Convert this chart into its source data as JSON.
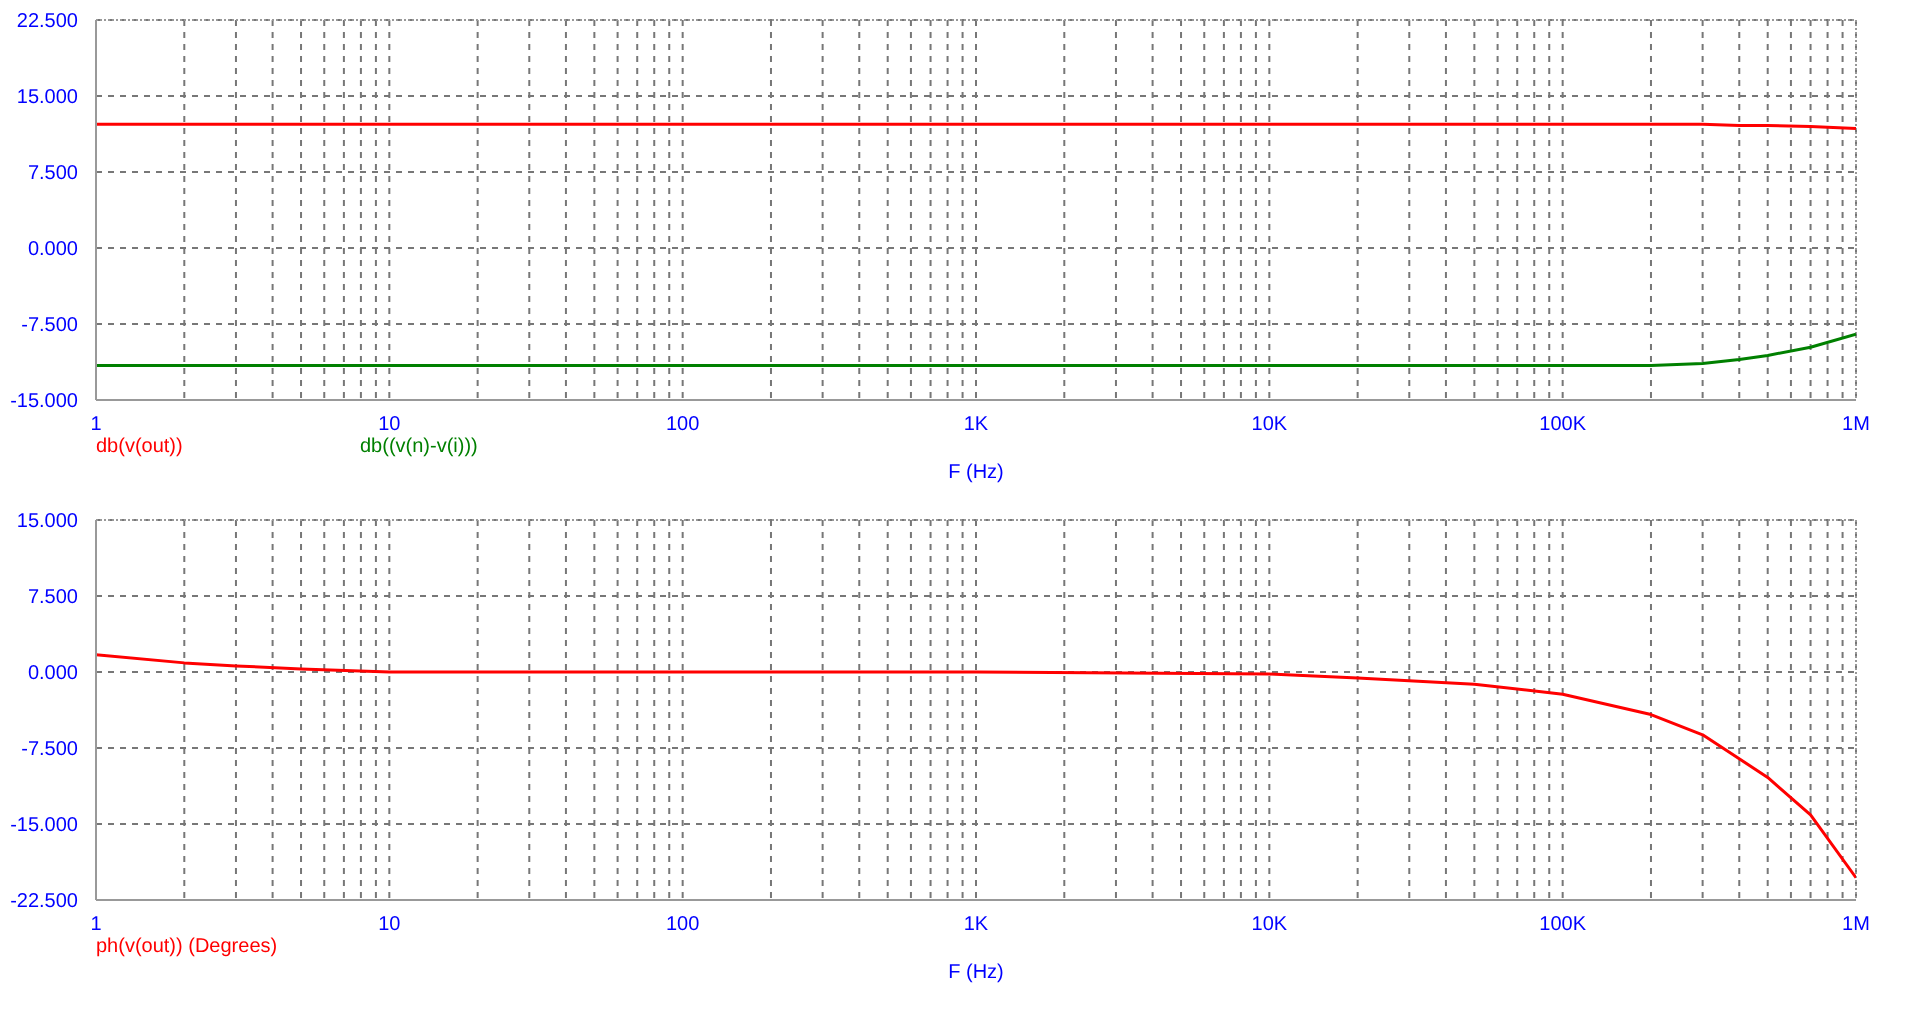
{
  "chart_data": [
    {
      "type": "line",
      "xlabel": "F (Hz)",
      "log": "x",
      "grid": true,
      "legend": "bottom left",
      "marker": "none",
      "line_style": "solid",
      "xlim": [
        1,
        1000000
      ],
      "ylim": [
        -15,
        22.5
      ],
      "xticks": [
        {
          "value": 1,
          "label": "1"
        },
        {
          "value": 2,
          "label": null
        },
        {
          "value": 3,
          "label": null
        },
        {
          "value": 4,
          "label": null
        },
        {
          "value": 5,
          "label": null
        },
        {
          "value": 6,
          "label": null
        },
        {
          "value": 7,
          "label": null
        },
        {
          "value": 8,
          "label": null
        },
        {
          "value": 9,
          "label": null
        },
        {
          "value": 10,
          "label": "10"
        },
        {
          "value": 20,
          "label": null
        },
        {
          "value": 30,
          "label": null
        },
        {
          "value": 40,
          "label": null
        },
        {
          "value": 50,
          "label": null
        },
        {
          "value": 60,
          "label": null
        },
        {
          "value": 70,
          "label": null
        },
        {
          "value": 80,
          "label": null
        },
        {
          "value": 90,
          "label": null
        },
        {
          "value": 100,
          "label": "100"
        },
        {
          "value": 200,
          "label": null
        },
        {
          "value": 300,
          "label": null
        },
        {
          "value": 400,
          "label": null
        },
        {
          "value": 500,
          "label": null
        },
        {
          "value": 600,
          "label": null
        },
        {
          "value": 700,
          "label": null
        },
        {
          "value": 800,
          "label": null
        },
        {
          "value": 900,
          "label": null
        },
        {
          "value": 1000,
          "label": "1K"
        },
        {
          "value": 2000,
          "label": null
        },
        {
          "value": 3000,
          "label": null
        },
        {
          "value": 4000,
          "label": null
        },
        {
          "value": 5000,
          "label": null
        },
        {
          "value": 6000,
          "label": null
        },
        {
          "value": 7000,
          "label": null
        },
        {
          "value": 8000,
          "label": null
        },
        {
          "value": 9000,
          "label": null
        },
        {
          "value": 10000,
          "label": "10K"
        },
        {
          "value": 20000,
          "label": null
        },
        {
          "value": 30000,
          "label": null
        },
        {
          "value": 40000,
          "label": null
        },
        {
          "value": 50000,
          "label": null
        },
        {
          "value": 60000,
          "label": null
        },
        {
          "value": 70000,
          "label": null
        },
        {
          "value": 80000,
          "label": null
        },
        {
          "value": 90000,
          "label": null
        },
        {
          "value": 100000,
          "label": "100K"
        },
        {
          "value": 200000,
          "label": null
        },
        {
          "value": 300000,
          "label": null
        },
        {
          "value": 400000,
          "label": null
        },
        {
          "value": 500000,
          "label": null
        },
        {
          "value": 600000,
          "label": null
        },
        {
          "value": 700000,
          "label": null
        },
        {
          "value": 800000,
          "label": null
        },
        {
          "value": 900000,
          "label": null
        },
        {
          "value": 1000000,
          "label": "1M"
        }
      ],
      "yticks": [
        {
          "value": -15,
          "label": "-15.000"
        },
        {
          "value": -7.5,
          "label": "-7.500"
        },
        {
          "value": 0,
          "label": "0.000"
        },
        {
          "value": 7.5,
          "label": "7.500"
        },
        {
          "value": 15,
          "label": "15.000"
        },
        {
          "value": 22.5,
          "label": "22.500"
        }
      ],
      "series": [
        {
          "name": "db(v(out))",
          "color": "#ff0000",
          "x": [
            1,
            10,
            100,
            1000,
            10000,
            100000,
            200000,
            300000,
            400000,
            500000,
            700000,
            1000000
          ],
          "values": [
            12.2,
            12.2,
            12.2,
            12.2,
            12.2,
            12.2,
            12.2,
            12.2,
            12.1,
            12.1,
            12.0,
            11.8
          ]
        },
        {
          "name": "db((v(n)-v(i)))",
          "color": "#008000",
          "x": [
            1,
            10,
            100,
            1000,
            10000,
            100000,
            200000,
            300000,
            400000,
            500000,
            700000,
            1000000
          ],
          "values": [
            -11.6,
            -11.6,
            -11.6,
            -11.6,
            -11.6,
            -11.6,
            -11.6,
            -11.4,
            -11.0,
            -10.6,
            -9.8,
            -8.5
          ]
        }
      ]
    },
    {
      "type": "line",
      "xlabel": "F (Hz)",
      "log": "x",
      "grid": true,
      "legend": "bottom left",
      "marker": "none",
      "line_style": "solid",
      "xlim": [
        1,
        1000000
      ],
      "ylim": [
        -22.5,
        15
      ],
      "xticks": [
        {
          "value": 1,
          "label": "1"
        },
        {
          "value": 2,
          "label": null
        },
        {
          "value": 3,
          "label": null
        },
        {
          "value": 4,
          "label": null
        },
        {
          "value": 5,
          "label": null
        },
        {
          "value": 6,
          "label": null
        },
        {
          "value": 7,
          "label": null
        },
        {
          "value": 8,
          "label": null
        },
        {
          "value": 9,
          "label": null
        },
        {
          "value": 10,
          "label": "10"
        },
        {
          "value": 20,
          "label": null
        },
        {
          "value": 30,
          "label": null
        },
        {
          "value": 40,
          "label": null
        },
        {
          "value": 50,
          "label": null
        },
        {
          "value": 60,
          "label": null
        },
        {
          "value": 70,
          "label": null
        },
        {
          "value": 80,
          "label": null
        },
        {
          "value": 90,
          "label": null
        },
        {
          "value": 100,
          "label": "100"
        },
        {
          "value": 200,
          "label": null
        },
        {
          "value": 300,
          "label": null
        },
        {
          "value": 400,
          "label": null
        },
        {
          "value": 500,
          "label": null
        },
        {
          "value": 600,
          "label": null
        },
        {
          "value": 700,
          "label": null
        },
        {
          "value": 800,
          "label": null
        },
        {
          "value": 900,
          "label": null
        },
        {
          "value": 1000,
          "label": "1K"
        },
        {
          "value": 2000,
          "label": null
        },
        {
          "value": 3000,
          "label": null
        },
        {
          "value": 4000,
          "label": null
        },
        {
          "value": 5000,
          "label": null
        },
        {
          "value": 6000,
          "label": null
        },
        {
          "value": 7000,
          "label": null
        },
        {
          "value": 8000,
          "label": null
        },
        {
          "value": 9000,
          "label": null
        },
        {
          "value": 10000,
          "label": "10K"
        },
        {
          "value": 20000,
          "label": null
        },
        {
          "value": 30000,
          "label": null
        },
        {
          "value": 40000,
          "label": null
        },
        {
          "value": 50000,
          "label": null
        },
        {
          "value": 60000,
          "label": null
        },
        {
          "value": 70000,
          "label": null
        },
        {
          "value": 80000,
          "label": null
        },
        {
          "value": 90000,
          "label": null
        },
        {
          "value": 100000,
          "label": "100K"
        },
        {
          "value": 200000,
          "label": null
        },
        {
          "value": 300000,
          "label": null
        },
        {
          "value": 400000,
          "label": null
        },
        {
          "value": 500000,
          "label": null
        },
        {
          "value": 600000,
          "label": null
        },
        {
          "value": 700000,
          "label": null
        },
        {
          "value": 800000,
          "label": null
        },
        {
          "value": 900000,
          "label": null
        },
        {
          "value": 1000000,
          "label": "1M"
        }
      ],
      "yticks": [
        {
          "value": -22.5,
          "label": "-22.500"
        },
        {
          "value": -15,
          "label": "-15.000"
        },
        {
          "value": -7.5,
          "label": "-7.500"
        },
        {
          "value": 0,
          "label": "0.000"
        },
        {
          "value": 7.5,
          "label": "7.500"
        },
        {
          "value": 15,
          "label": "15.000"
        }
      ],
      "series": [
        {
          "name": "ph(v(out)) (Degrees)",
          "color": "#ff0000",
          "x": [
            1,
            2,
            3,
            5,
            10,
            100,
            1000,
            10000,
            20000,
            50000,
            100000,
            200000,
            300000,
            500000,
            700000,
            1000000
          ],
          "values": [
            1.7,
            0.9,
            0.6,
            0.3,
            0.0,
            0.0,
            0.0,
            -0.2,
            -0.6,
            -1.2,
            -2.2,
            -4.2,
            -6.2,
            -10.4,
            -14.1,
            -20.3
          ]
        }
      ]
    }
  ]
}
